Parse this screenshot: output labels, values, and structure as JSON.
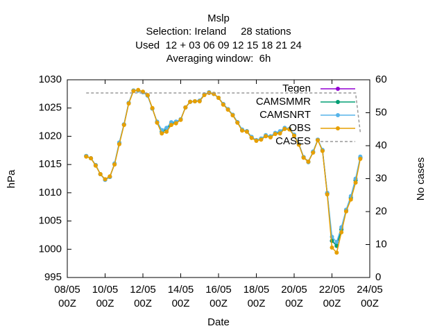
{
  "chart_data": {
    "type": "line",
    "title": "Mslp",
    "subtitle": [
      "Selection: Ireland     28 stations",
      "Used  12 + 03 06 09 12 15 18 21 24",
      "Averaging window:  6h"
    ],
    "x_label": "Date",
    "y_label": "hPa",
    "y2_label": "No cases",
    "xlim": [
      8,
      24
    ],
    "xticks": [
      {
        "value": 8,
        "label": "08/05\n00Z"
      },
      {
        "value": 10,
        "label": "10/05\n00Z"
      },
      {
        "value": 12,
        "label": "12/05\n00Z"
      },
      {
        "value": 14,
        "label": "14/05\n00Z"
      },
      {
        "value": 16,
        "label": "16/05\n00Z"
      },
      {
        "value": 18,
        "label": "18/05\n00Z"
      },
      {
        "value": 20,
        "label": "20/05\n00Z"
      },
      {
        "value": 22,
        "label": "22/05\n00Z"
      },
      {
        "value": 24,
        "label": "24/05\n00Z"
      }
    ],
    "ylim": [
      995,
      1030
    ],
    "yticks": [
      995,
      1000,
      1005,
      1010,
      1015,
      1020,
      1025,
      1030
    ],
    "y2lim": [
      0,
      60
    ],
    "y2ticks": [
      0,
      10,
      20,
      30,
      40,
      50,
      60
    ],
    "x": [
      9,
      9.25,
      9.5,
      9.75,
      10,
      10.25,
      10.5,
      10.75,
      11,
      11.25,
      11.5,
      11.75,
      12,
      12.25,
      12.5,
      12.75,
      13,
      13.25,
      13.5,
      13.75,
      14,
      14.25,
      14.5,
      14.75,
      15,
      15.25,
      15.5,
      15.75,
      16,
      16.25,
      16.5,
      16.75,
      17,
      17.25,
      17.5,
      17.75,
      18,
      18.25,
      18.5,
      18.75,
      19,
      19.25,
      19.5,
      19.75,
      20,
      20.25,
      20.5,
      20.75,
      21,
      21.25,
      21.5,
      21.75,
      22,
      22.25,
      22.5,
      22.75,
      23,
      23.25,
      23.5
    ],
    "series": [
      {
        "name": "Tegen",
        "color": "#9400d3",
        "values": [
          1016.5,
          1016.1,
          1014.9,
          1013.3,
          1012.3,
          1012.8,
          1015.1,
          1018.8,
          1022.1,
          1025.9,
          1028.1,
          1028.1,
          1027.8,
          1027.2,
          1024.9,
          1022.5,
          1020.8,
          1021.2,
          1022.3,
          1022.5,
          1023.0,
          1025.1,
          1026.1,
          1026.2,
          1026.3,
          1027.4,
          1027.7,
          1027.5,
          1026.8,
          1025.7,
          1024.8,
          1023.8,
          1022.5,
          1021.1,
          1020.9,
          1019.8,
          1019.3,
          1019.5,
          1020.1,
          1019.9,
          1020.5,
          1020.7,
          1021.4,
          1021.3,
          1020.2,
          1018.6,
          1016.3,
          1015.5,
          1017.2,
          1019.4,
          1017.5,
          1009.9,
          1001.5,
          1000.6,
          1003.5,
          1006.9,
          1009.1,
          1012.2,
          1016.2
        ]
      },
      {
        "name": "CAMSMMR",
        "color": "#009e73",
        "values": [
          1016.5,
          1016.1,
          1014.9,
          1013.3,
          1012.3,
          1012.8,
          1015.1,
          1018.8,
          1022.1,
          1025.9,
          1028.1,
          1028.1,
          1027.8,
          1027.2,
          1024.9,
          1022.5,
          1020.8,
          1021.2,
          1022.3,
          1022.5,
          1023.0,
          1025.1,
          1026.1,
          1026.2,
          1026.3,
          1027.4,
          1027.7,
          1027.5,
          1026.8,
          1025.7,
          1024.8,
          1023.8,
          1022.5,
          1021.1,
          1020.9,
          1019.8,
          1019.3,
          1019.5,
          1020.1,
          1019.9,
          1020.5,
          1020.7,
          1021.4,
          1021.3,
          1020.2,
          1018.6,
          1016.3,
          1015.5,
          1017.2,
          1019.4,
          1017.5,
          1009.9,
          1001.5,
          1000.6,
          1003.5,
          1006.9,
          1009.1,
          1012.2,
          1016.2
        ]
      },
      {
        "name": "CAMSNRT",
        "color": "#56b4e9",
        "values": [
          1016.5,
          1016.1,
          1014.9,
          1013.3,
          1012.3,
          1012.8,
          1015.2,
          1018.9,
          1022.1,
          1025.9,
          1028.1,
          1028.1,
          1027.8,
          1027.2,
          1024.9,
          1022.6,
          1021.1,
          1021.5,
          1022.5,
          1022.6,
          1023.0,
          1025.1,
          1026.1,
          1026.2,
          1026.3,
          1027.4,
          1027.8,
          1027.5,
          1026.8,
          1025.7,
          1024.8,
          1023.8,
          1022.5,
          1021.2,
          1020.9,
          1019.9,
          1019.3,
          1019.6,
          1020.2,
          1020.0,
          1020.6,
          1020.9,
          1021.5,
          1021.3,
          1020.3,
          1018.6,
          1016.3,
          1015.4,
          1017.3,
          1019.4,
          1017.6,
          1010.0,
          1002.2,
          1001.3,
          1003.9,
          1007.0,
          1009.4,
          1012.5,
          1016.4
        ]
      },
      {
        "name": "OBS",
        "color": "#e69f00",
        "values": [
          1016.4,
          1016.1,
          1014.8,
          1013.3,
          1012.4,
          1012.9,
          1015.0,
          1018.6,
          1022.0,
          1025.8,
          1028.0,
          1028.2,
          1027.9,
          1027.3,
          1025.0,
          1022.4,
          1020.5,
          1020.8,
          1022.0,
          1022.3,
          1022.9,
          1025.1,
          1026.1,
          1026.2,
          1026.2,
          1027.3,
          1027.7,
          1027.5,
          1026.8,
          1025.6,
          1024.7,
          1023.7,
          1022.4,
          1021.0,
          1020.8,
          1019.7,
          1019.2,
          1019.4,
          1020.0,
          1019.8,
          1020.4,
          1020.5,
          1021.3,
          1021.2,
          1020.1,
          1018.5,
          1016.2,
          1015.5,
          1017.1,
          1019.3,
          1017.4,
          1009.7,
          1000.3,
          999.4,
          1003.0,
          1006.7,
          1008.8,
          1011.8,
          1016.0
        ]
      },
      {
        "name": "CASES",
        "color": "#999999",
        "axis": "y2",
        "dashed": true,
        "values": [
          56,
          56,
          56,
          56,
          56,
          56,
          56,
          56,
          56,
          56,
          56,
          56,
          56,
          56,
          56,
          56,
          56,
          56,
          56,
          56,
          56,
          56,
          56,
          56,
          56,
          56,
          56,
          56,
          56,
          56,
          56,
          56,
          56,
          56,
          56,
          56,
          56,
          56,
          56,
          56,
          56,
          56,
          56,
          56,
          56,
          56,
          56,
          56,
          56,
          56,
          56,
          56,
          56,
          56,
          56,
          56,
          56,
          56,
          44
        ]
      }
    ]
  }
}
